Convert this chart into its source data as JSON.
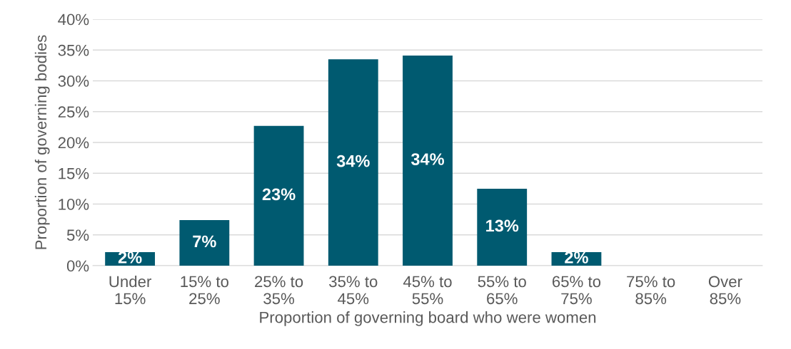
{
  "chart_data": {
    "type": "bar",
    "categories": [
      "Under 15%",
      "15% to 25%",
      "25% to 35%",
      "35% to 45%",
      "45% to 55%",
      "55% to 65%",
      "65% to 75%",
      "75% to 85%",
      "Over 85%"
    ],
    "values": [
      2.2,
      7.4,
      22.7,
      33.5,
      34.1,
      12.5,
      2.2,
      0,
      0
    ],
    "value_labels": [
      "2%",
      "7%",
      "23%",
      "34%",
      "34%",
      "13%",
      "2%",
      null,
      null
    ],
    "color": "#005a70",
    "xlabel": "Proportion of governing board who were women",
    "ylabel": "Proportion of governing bodies",
    "ylim": [
      0,
      40
    ],
    "yticks": [
      {
        "value": 0,
        "label": "0%"
      },
      {
        "value": 5,
        "label": "5%"
      },
      {
        "value": 10,
        "label": "10%"
      },
      {
        "value": 15,
        "label": "15%"
      },
      {
        "value": 20,
        "label": "20%"
      },
      {
        "value": 25,
        "label": "25%"
      },
      {
        "value": 30,
        "label": "30%"
      },
      {
        "value": 35,
        "label": "35%"
      },
      {
        "value": 40,
        "label": "40%"
      }
    ],
    "grid": "y",
    "legend": false
  }
}
